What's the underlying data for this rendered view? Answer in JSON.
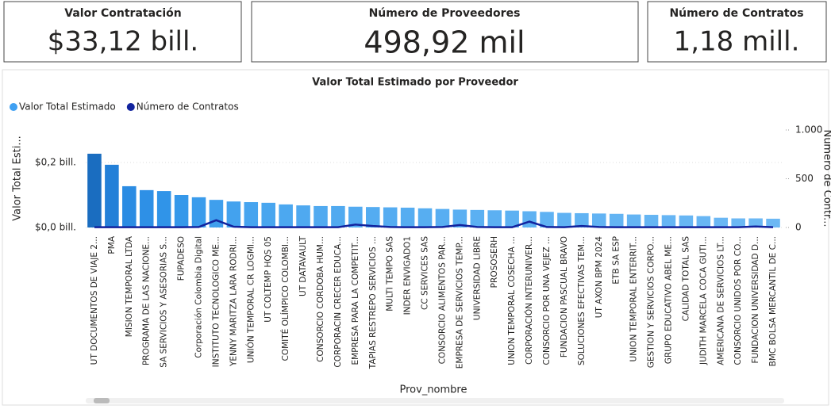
{
  "cards": [
    {
      "title": "Valor Contratación",
      "value": "$33,12 bill."
    },
    {
      "title": "Número de Proveedores",
      "value": "498,92 mil"
    },
    {
      "title": "Número de Contratos",
      "value": "1,18 mill."
    }
  ],
  "chart_data": {
    "type": "bar_line",
    "title": "Valor Total Estimado por Proveedor",
    "x_label": "Prov_nombre",
    "y_label": "Valor Total Esti...",
    "y2_label": "Número de Contr...",
    "legend": "top-left",
    "grid": true,
    "categories": [
      "UT DOCUMENTOS DE VIAJE 2...",
      "PMA",
      "MISION TEMPORAL LTDA",
      "PROGRAMA DE LAS NACIONE...",
      "SA SERVICIOS Y ASESORIAS S...",
      "FUPADESO",
      "Corporación Colombia Digital",
      "INSTITUTO TECNOLOGICO ME...",
      "YENNY MARITZA LARA RODRI...",
      "UNIÓN TEMPORAL CR LOGMI...",
      "UT COLTEMP HQS 05",
      "COMITÉ OLÍMPICO COLOMBI...",
      "UT DATAVAULT",
      "CONSORCIO CORDOBA HUM...",
      "CORPORACIN CRECER EDUCA...",
      "EMPRESA PARA LA COMPETIT...",
      "TAPIAS RESTREPO SERVICIOS ...",
      "MULTI TEMPO SAS",
      "INDER ENVIGADO1",
      "CC SERVICES SAS",
      "CONSORCIO ALIMENTOS PAR...",
      "EMPRESA DE SERVICIOS TEMP...",
      "UNIVERSIDAD LIBRE",
      "PROSOSERH",
      "UNION TEMPORAL COSECHA ...",
      "CORPORACIÓN INTERUNIVER...",
      "CONSORCIO POR UNA VEJEZ ...",
      "FUNDACION PASCUAL BRAVO",
      "SOLUCIONES EFECTIVAS TEM...",
      "UT AXON BPM 2024",
      "ETB SA ESP",
      "UNION TEMPORAL ENTERRIT...",
      "GESTION Y SERVICIOS CORPO...",
      "GRUPO EDUCATIVO ABEL ME...",
      "CALIDAD TOTAL SAS",
      "JUDITH MARCELA COCA GUTI...",
      "AMERICANA DE SERVICIOS LT...",
      "CONSORCIO UNIDOS POR CO...",
      "FUNDACION UNIVERSIDAD D...",
      "BMC BOLSA MERCANTIL DE C..."
    ],
    "series": [
      {
        "name": "Valor Total Estimado",
        "color": "#3fa0f2",
        "bar_colors": [
          "#1a6dc0",
          "#2380d8",
          "#2b8ce3",
          "#2e90e6",
          "#3094e8",
          "#3598ea",
          "#3a9cec",
          "#3f9fed",
          "#43a2ee",
          "#46a4ef",
          "#49a6ef",
          "#4ca8f0",
          "#4fa9f0",
          "#51aaf0",
          "#51aaf0",
          "#53abf1",
          "#54acf1",
          "#55acf1",
          "#56adf1",
          "#57aef1",
          "#58aef2",
          "#5aaff2",
          "#5bb0f2",
          "#5cb0f2",
          "#5db1f2",
          "#5eb1f2",
          "#5fb2f3",
          "#60b2f3",
          "#61b3f3",
          "#62b3f3",
          "#63b4f3",
          "#64b4f3",
          "#65b5f3",
          "#66b5f4",
          "#67b6f4",
          "#68b6f4",
          "#6ab7f4",
          "#6bb8f4",
          "#6bb8f4",
          "#6cb8f4"
        ],
        "values": [
          0.227,
          0.193,
          0.127,
          0.115,
          0.112,
          0.1,
          0.093,
          0.085,
          0.08,
          0.078,
          0.076,
          0.071,
          0.068,
          0.066,
          0.066,
          0.064,
          0.063,
          0.062,
          0.061,
          0.059,
          0.057,
          0.055,
          0.054,
          0.053,
          0.052,
          0.05,
          0.048,
          0.045,
          0.044,
          0.043,
          0.042,
          0.04,
          0.039,
          0.038,
          0.037,
          0.035,
          0.03,
          0.028,
          0.028,
          0.027
        ]
      },
      {
        "name": "Número de Contratos",
        "color": "#12239e",
        "axis": "y2",
        "values": [
          3,
          3,
          3,
          3,
          3,
          3,
          5,
          75,
          8,
          3,
          3,
          3,
          3,
          3,
          3,
          30,
          15,
          5,
          3,
          3,
          5,
          25,
          5,
          3,
          3,
          60,
          5,
          3,
          15,
          5,
          3,
          3,
          3,
          3,
          3,
          3,
          3,
          3,
          10,
          3
        ]
      }
    ],
    "ylim": [
      0,
      0.3
    ],
    "yticks": [
      {
        "value": 0,
        "label": "$0,0 bill."
      },
      {
        "value": 0.2,
        "label": "$0,2 bill."
      }
    ],
    "y2lim": [
      0,
      1000
    ],
    "y2ticks": [
      0,
      500,
      {
        "value": 1000,
        "label": "1.000"
      }
    ]
  }
}
